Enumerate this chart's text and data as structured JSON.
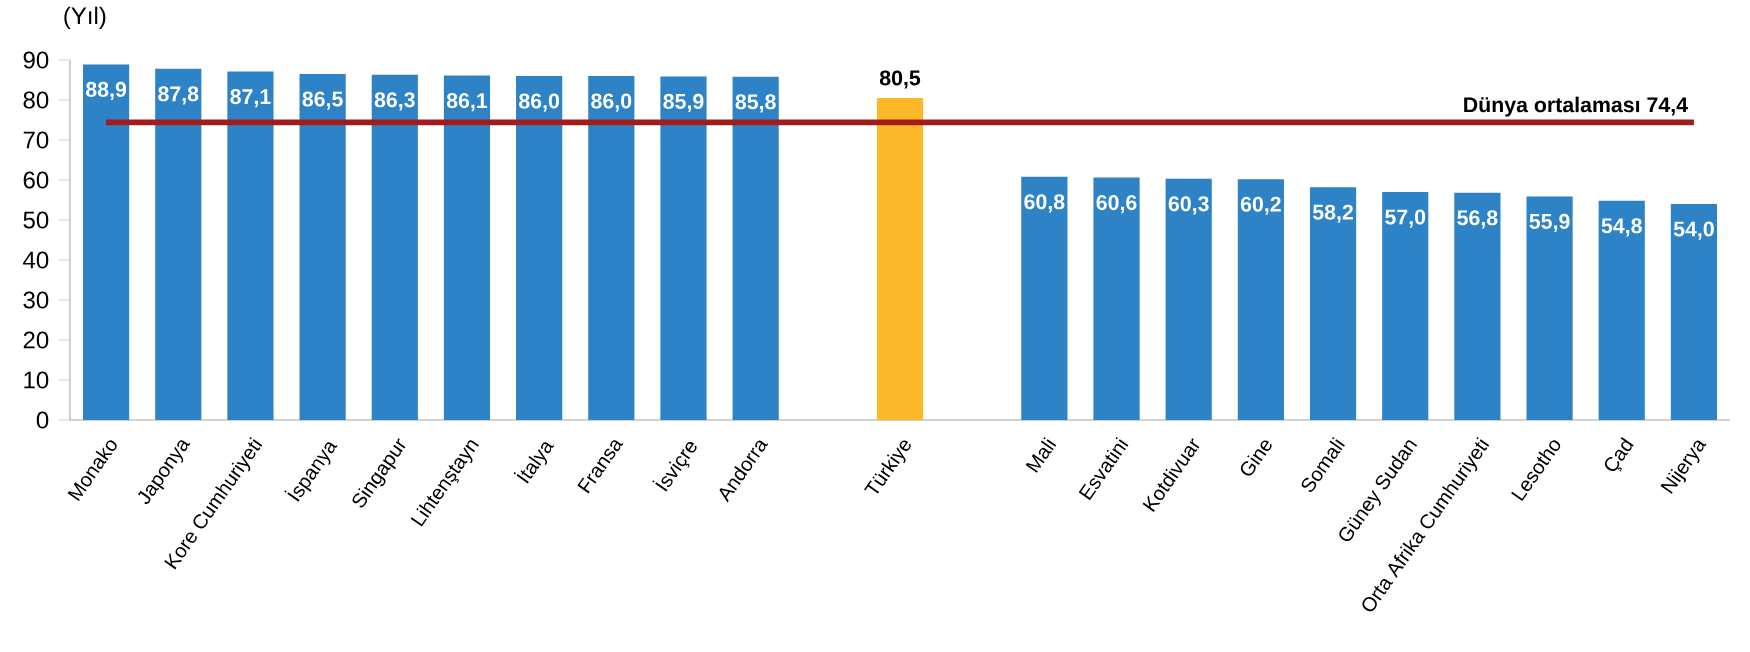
{
  "chart_data": {
    "type": "bar",
    "ylabel": "(Yıl)",
    "categories": [
      "Monako",
      "Japonya",
      "Kore Cumhuriyeti",
      "İspanya",
      "Singapur",
      "Lihtenştayn",
      "İtalya",
      "Fransa",
      "İsviçre",
      "Andorra",
      null,
      "Türkiye",
      null,
      "Mali",
      "Esvatini",
      "Kotdivuar",
      "Gine",
      "Somali",
      "Güney Sudan",
      "Orta Afrika Cumhuriyeti",
      "Lesotho",
      "Çad",
      "Nijerya"
    ],
    "values": [
      88.9,
      87.8,
      87.1,
      86.5,
      86.3,
      86.1,
      86.0,
      86.0,
      85.9,
      85.8,
      null,
      80.5,
      null,
      60.8,
      60.6,
      60.3,
      60.2,
      58.2,
      57.0,
      56.8,
      55.9,
      54.8,
      54.0
    ],
    "value_labels": [
      "88,9",
      "87,8",
      "87,1",
      "86,5",
      "86,3",
      "86,1",
      "86,0",
      "86,0",
      "85,9",
      "85,8",
      null,
      "80,5",
      null,
      "60,8",
      "60,6",
      "60,3",
      "60,2",
      "58,2",
      "57,0",
      "56,8",
      "55,9",
      "54,8",
      "54,0"
    ],
    "colors": [
      "#2e83c6",
      "#2e83c6",
      "#2e83c6",
      "#2e83c6",
      "#2e83c6",
      "#2e83c6",
      "#2e83c6",
      "#2e83c6",
      "#2e83c6",
      "#2e83c6",
      "#2e83c6",
      "#fbb829",
      "#2e83c6",
      "#2e83c6",
      "#2e83c6",
      "#2e83c6",
      "#2e83c6",
      "#2e83c6",
      "#2e83c6",
      "#2e83c6",
      "#2e83c6",
      "#2e83c6",
      "#2e83c6"
    ],
    "ylim": [
      0,
      90
    ],
    "yticks": [
      0,
      10,
      20,
      30,
      40,
      50,
      60,
      70,
      80,
      90
    ],
    "grid": false,
    "ref_lines": [
      {
        "axis": "y",
        "value": 74.4,
        "label": "Dünya ortalaması   74,4",
        "color": "#a31c1c"
      }
    ]
  }
}
